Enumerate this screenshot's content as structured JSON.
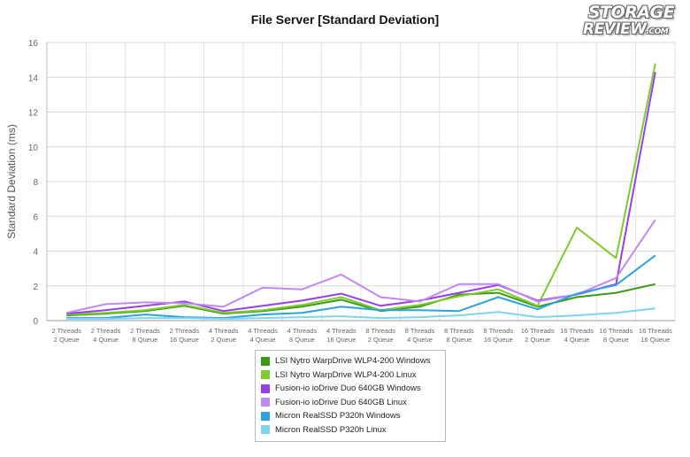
{
  "chart_data": {
    "type": "line",
    "title": "File Server [Standard Deviation]",
    "xlabel": "",
    "ylabel": "Standard Deviation (ms)",
    "ylim": [
      0,
      16
    ],
    "yticks": [
      0,
      2,
      4,
      6,
      8,
      10,
      12,
      14,
      16
    ],
    "grid": true,
    "legend_position": "bottom",
    "categories": [
      [
        "2 Threads",
        "2 Queue"
      ],
      [
        "2 Threads",
        "4 Queue"
      ],
      [
        "2 Threads",
        "8 Queue"
      ],
      [
        "2 Threads",
        "16 Queue"
      ],
      [
        "4 Threads",
        "2 Queue"
      ],
      [
        "4 Threads",
        "4 Queue"
      ],
      [
        "4 Threads",
        "8 Queue"
      ],
      [
        "4 Threads",
        "16 Queue"
      ],
      [
        "8 Threads",
        "2 Queue"
      ],
      [
        "8 Threads",
        "4 Queue"
      ],
      [
        "8 Threads",
        "8 Queue"
      ],
      [
        "8 Threads",
        "16 Queue"
      ],
      [
        "16 Threads",
        "2 Queue"
      ],
      [
        "16 Threads",
        "4 Queue"
      ],
      [
        "16 Threads",
        "8 Queue"
      ],
      [
        "16 Threads",
        "16 Queue"
      ]
    ],
    "series": [
      {
        "name": "LSI Nytro WarpDrive WLP4-200 Windows",
        "color": "#3c9a14",
        "values": [
          0.3,
          0.4,
          0.55,
          0.85,
          0.4,
          0.55,
          0.8,
          1.2,
          0.55,
          0.8,
          1.5,
          1.6,
          0.8,
          1.35,
          1.6,
          2.1
        ]
      },
      {
        "name": "LSI Nytro WarpDrive WLP4-200 Linux",
        "color": "#7ccc2e",
        "values": [
          0.35,
          0.45,
          0.6,
          0.9,
          0.45,
          0.6,
          0.9,
          1.35,
          0.6,
          0.9,
          1.4,
          1.8,
          0.85,
          5.35,
          3.6,
          14.8
        ]
      },
      {
        "name": "Fusion-io ioDrive Duo 640GB Windows",
        "color": "#9a3ee6",
        "values": [
          0.4,
          0.6,
          0.85,
          1.1,
          0.55,
          0.85,
          1.15,
          1.55,
          0.85,
          1.15,
          1.6,
          2.05,
          1.15,
          1.5,
          2.1,
          14.3
        ]
      },
      {
        "name": "Fusion-io ioDrive Duo 640GB Linux",
        "color": "#c08af0",
        "values": [
          0.45,
          0.95,
          1.05,
          1.0,
          0.8,
          1.9,
          1.8,
          2.65,
          1.35,
          1.1,
          2.1,
          2.1,
          1.1,
          1.5,
          2.45,
          5.8
        ]
      },
      {
        "name": "Micron RealSSD P320h Windows",
        "color": "#2ba4dd",
        "values": [
          0.15,
          0.15,
          0.35,
          0.2,
          0.15,
          0.35,
          0.45,
          0.8,
          0.6,
          0.6,
          0.55,
          1.35,
          0.65,
          1.55,
          2.05,
          3.75
        ]
      },
      {
        "name": "Micron RealSSD P320h Linux",
        "color": "#7fd4f2",
        "values": [
          0.1,
          0.1,
          0.15,
          0.15,
          0.1,
          0.15,
          0.2,
          0.25,
          0.15,
          0.2,
          0.3,
          0.5,
          0.2,
          0.3,
          0.45,
          0.7
        ]
      }
    ]
  },
  "logo": {
    "line1": "STORAGE",
    "line2": "REVIEW",
    "suffix": ".COM"
  }
}
